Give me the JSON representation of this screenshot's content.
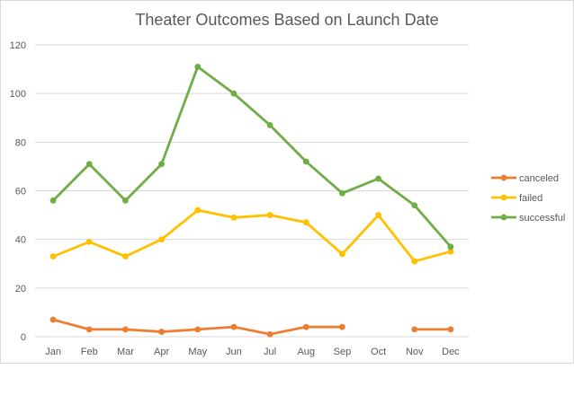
{
  "chart_data": {
    "type": "line",
    "title": "Theater Outcomes Based on Launch Date",
    "categories": [
      "Jan",
      "Feb",
      "Mar",
      "Apr",
      "May",
      "Jun",
      "Jul",
      "Aug",
      "Sep",
      "Oct",
      "Nov",
      "Dec"
    ],
    "series": [
      {
        "name": "canceled",
        "color": "#ED7D31",
        "values": [
          7,
          3,
          3,
          2,
          3,
          4,
          1,
          4,
          4,
          null,
          3,
          3
        ]
      },
      {
        "name": "failed",
        "color": "#FFC000",
        "values": [
          33,
          39,
          33,
          40,
          52,
          49,
          50,
          47,
          34,
          50,
          31,
          35
        ]
      },
      {
        "name": "successful",
        "color": "#70AD47",
        "values": [
          56,
          71,
          56,
          71,
          111,
          100,
          87,
          72,
          59,
          65,
          54,
          37
        ]
      }
    ],
    "ylim": [
      0,
      120
    ],
    "yticks": [
      0,
      20,
      40,
      60,
      80,
      100,
      120
    ],
    "grid": true,
    "legend": "right",
    "xlabel": "",
    "ylabel": ""
  }
}
